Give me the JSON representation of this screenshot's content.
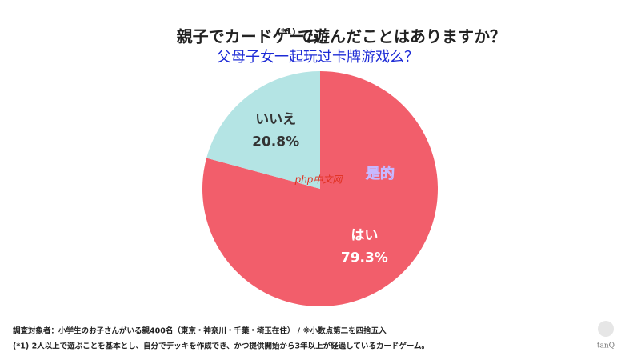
{
  "chart_data": {
    "type": "pie",
    "title": "親子でカードゲーム",
    "title_note": "(*1)",
    "title_rest": "で遊んだことはありますか？",
    "subtitle": "父母子女一起玩过卡牌游戏么？",
    "annotation": "是的",
    "watermark": "php中文网",
    "categories": [
      "はい",
      "いいえ"
    ],
    "values": [
      79.3,
      20.8
    ],
    "value_labels": [
      "79.3%",
      "20.8%"
    ],
    "colors": [
      "#f25e6b",
      "#b4e4e4"
    ],
    "label_colors": [
      "#ffffff",
      "#333333"
    ],
    "footnotes": [
      "調査対象者：小学生のお子さんがいる親400名（東京・神奈川・千葉・埼玉在住） / ※小数点第二を四捨五入",
      "(*1) 2人以上で遊ぶことを基本とし、自分でデッキを作成でき、かつ提供開始から3年以上が経過しているカードゲーム。"
    ],
    "logo": "tanQ"
  }
}
